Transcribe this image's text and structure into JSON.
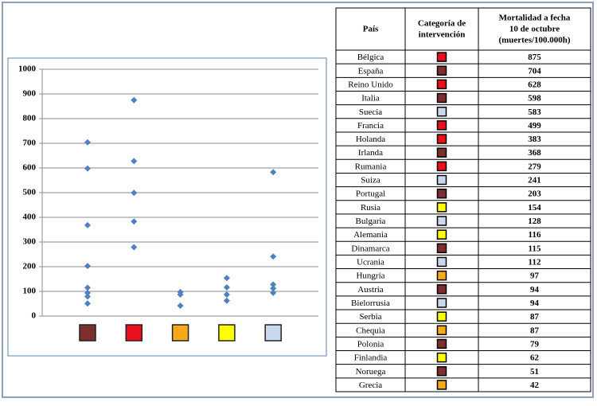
{
  "chart_data": {
    "type": "scatter",
    "ylim": [
      0,
      1000
    ],
    "yticks": [
      0,
      100,
      200,
      300,
      400,
      500,
      600,
      700,
      800,
      900,
      1000
    ],
    "grid": true,
    "categories": [
      null,
      null,
      null,
      null,
      null
    ],
    "category_colors": [
      "#7b2f2f",
      "#e8101a",
      "#f7a81b",
      "#ffff00",
      "#c9d8ef"
    ],
    "marker_color": "#4f81bd"
  },
  "table": {
    "headers": [
      "País",
      "Categoría de intervención",
      "Mortalidad a fecha 10 de octubre (muertes/100.000h)"
    ],
    "rows": [
      [
        "Bélgica",
        "#e8101a",
        875
      ],
      [
        "España",
        "#7b2f2f",
        704
      ],
      [
        "Reino Unido",
        "#e8101a",
        628
      ],
      [
        "Italia",
        "#7b2f2f",
        598
      ],
      [
        "Suecia",
        "#c9d8ef",
        583
      ],
      [
        "Francia",
        "#e8101a",
        499
      ],
      [
        "Holanda",
        "#e8101a",
        383
      ],
      [
        "Irlanda",
        "#7b2f2f",
        368
      ],
      [
        "Rumania",
        "#e8101a",
        279
      ],
      [
        "Suiza",
        "#c9d8ef",
        241
      ],
      [
        "Portugal",
        "#7b2f2f",
        203
      ],
      [
        "Rusia",
        "#ffff00",
        154
      ],
      [
        "Bulgaria",
        "#c9d8ef",
        128
      ],
      [
        "Alemania",
        "#ffff00",
        116
      ],
      [
        "Dinamarca",
        "#7b2f2f",
        115
      ],
      [
        "Ucrania",
        "#c9d8ef",
        112
      ],
      [
        "Hungría",
        "#f7a81b",
        97
      ],
      [
        "Austria",
        "#7b2f2f",
        94
      ],
      [
        "Bielorrusia",
        "#c9d8ef",
        94
      ],
      [
        "Serbia",
        "#ffff00",
        87
      ],
      [
        "Chequia",
        "#f7a81b",
        87
      ],
      [
        "Polonia",
        "#7b2f2f",
        79
      ],
      [
        "Finlandia",
        "#ffff00",
        62
      ],
      [
        "Noruega",
        "#7b2f2f",
        51
      ],
      [
        "Grecia",
        "#f7a81b",
        42
      ]
    ]
  }
}
